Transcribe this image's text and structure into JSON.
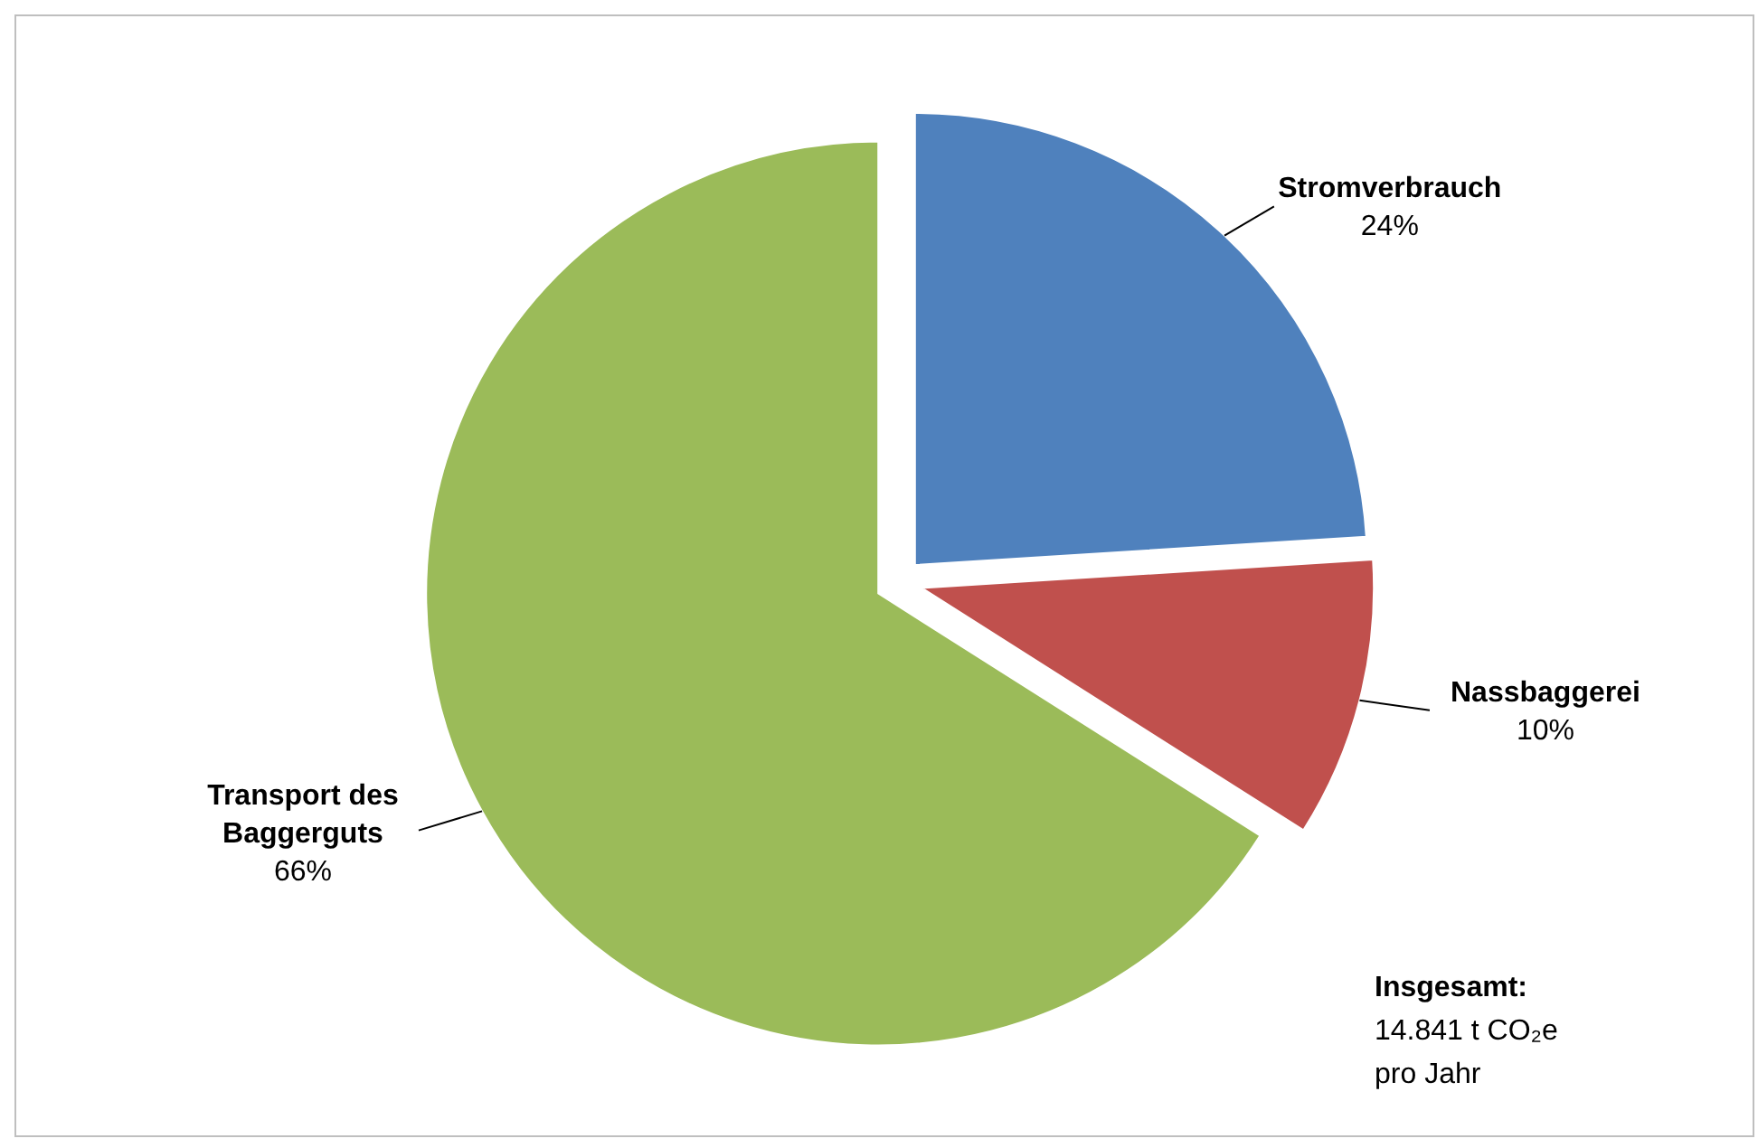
{
  "chart_data": {
    "type": "pie",
    "categories": [
      "Stromverbrauch",
      "Nassbaggerei",
      "Transport des Baggerguts"
    ],
    "values": [
      24,
      10,
      66
    ],
    "colors": [
      "#4f81bd",
      "#c0504d",
      "#9bbb59"
    ],
    "value_labels": [
      "24%",
      "10%",
      "66%"
    ],
    "annotations": [
      "Insgesamt:",
      "14.841 t CO₂e",
      "pro Jahr"
    ]
  }
}
